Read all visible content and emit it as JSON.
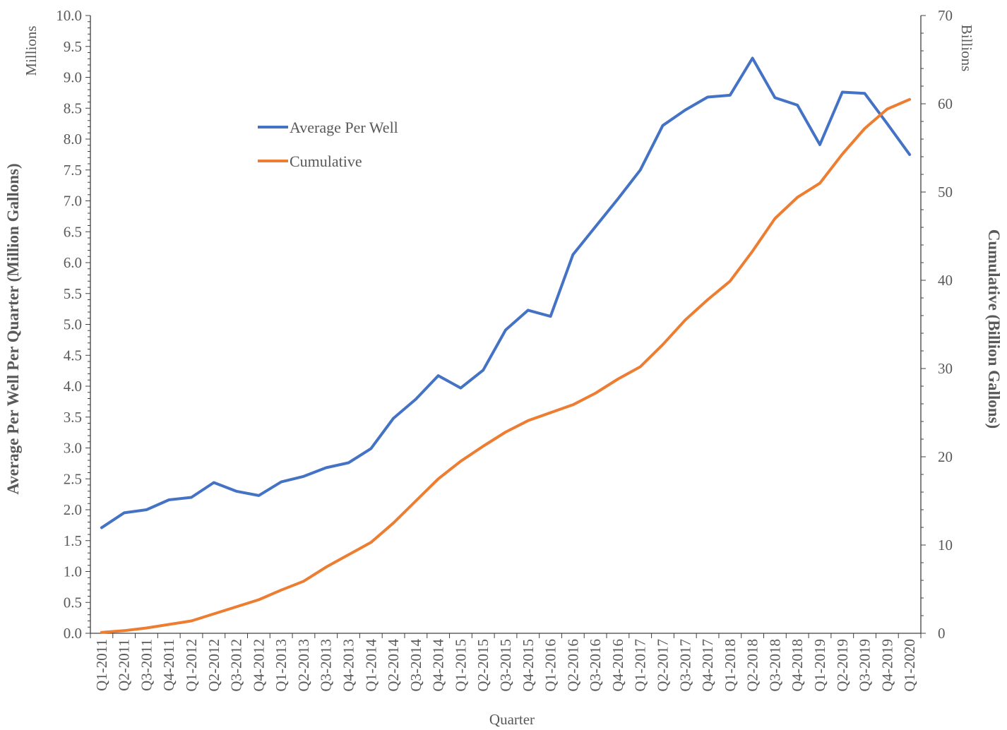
{
  "chart_data": {
    "type": "line",
    "title": "",
    "xlabel": "Quarter",
    "ylabel_left": "Average Per Well Per Quarter (Million Gallons)",
    "ylabel_right": "Cumulative (Billion Gallons)",
    "left_unit_label": "Millions",
    "right_unit_label": "Billions",
    "ylim_left": [
      0,
      10
    ],
    "ylim_right": [
      0,
      70
    ],
    "left_ticks": [
      "0.0",
      "0.5",
      "1.0",
      "1.5",
      "2.0",
      "2.5",
      "3.0",
      "3.5",
      "4.0",
      "4.5",
      "5.0",
      "5.5",
      "6.0",
      "6.5",
      "7.0",
      "7.5",
      "8.0",
      "8.5",
      "9.0",
      "9.5",
      "10.0"
    ],
    "right_ticks": [
      "0",
      "10",
      "20",
      "30",
      "40",
      "50",
      "60",
      "70"
    ],
    "grid": false,
    "legend_position": "upper-left",
    "categories": [
      "Q1-2011",
      "Q2-2011",
      "Q3-2011",
      "Q4-2011",
      "Q1-2012",
      "Q2-2012",
      "Q3-2012",
      "Q4-2012",
      "Q1-2013",
      "Q2-2013",
      "Q3-2013",
      "Q4-2013",
      "Q1-2014",
      "Q2-2014",
      "Q3-2014",
      "Q4-2014",
      "Q1-2015",
      "Q2-2015",
      "Q3-2015",
      "Q4-2015",
      "Q1-2016",
      "Q2-2016",
      "Q3-2016",
      "Q4-2016",
      "Q1-2017",
      "Q2-2017",
      "Q3-2017",
      "Q4-2017",
      "Q1-2018",
      "Q2-2018",
      "Q3-2018",
      "Q4-2018",
      "Q1-2019",
      "Q2-2019",
      "Q3-2019",
      "Q4-2019",
      "Q1-2020"
    ],
    "series": [
      {
        "name": "Average Per Well",
        "axis": "left",
        "color": "#4472C4",
        "values": [
          1.71,
          1.95,
          2.0,
          2.16,
          2.2,
          2.44,
          2.3,
          2.23,
          2.45,
          2.54,
          2.68,
          2.76,
          2.99,
          3.48,
          3.79,
          4.17,
          3.97,
          4.26,
          4.91,
          5.23,
          5.13,
          6.13,
          6.58,
          7.03,
          7.5,
          8.22,
          8.47,
          8.68,
          8.71,
          9.31,
          8.67,
          8.55,
          7.91,
          8.76,
          8.74,
          8.25,
          7.75
        ]
      },
      {
        "name": "Cumulative",
        "axis": "right",
        "color": "#ED7D31",
        "values": [
          0.1,
          0.3,
          0.6,
          1.0,
          1.4,
          2.2,
          3.0,
          3.8,
          4.9,
          5.9,
          7.5,
          8.9,
          10.3,
          12.5,
          15.0,
          17.5,
          19.5,
          21.2,
          22.8,
          24.1,
          25.0,
          25.9,
          27.2,
          28.8,
          30.2,
          32.7,
          35.5,
          37.8,
          39.9,
          43.3,
          47.0,
          49.4,
          51.0,
          54.3,
          57.2,
          59.4,
          60.5
        ]
      }
    ]
  }
}
